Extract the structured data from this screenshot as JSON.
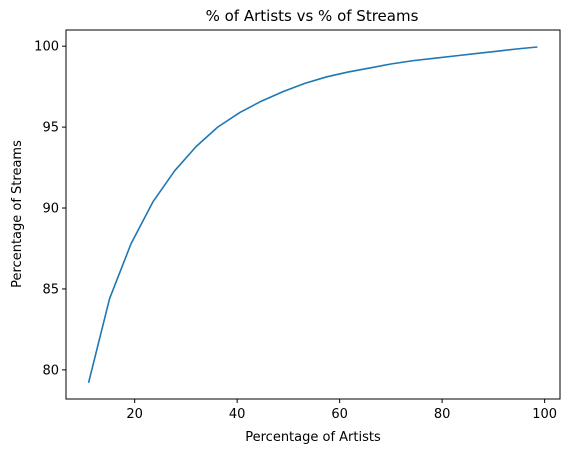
{
  "chart_data": {
    "type": "line",
    "title": "% of Artists vs % of Streams",
    "xlabel": "Percentage of Artists",
    "ylabel": "Percentage of Streams",
    "xlim": [
      6.6,
      103.0
    ],
    "ylim": [
      78.2,
      101.0
    ],
    "xticks": [
      20,
      40,
      60,
      80,
      100
    ],
    "yticks": [
      80,
      85,
      90,
      95,
      100
    ],
    "grid": false,
    "line_color": "#1f77b4",
    "series": [
      {
        "name": "",
        "x": [
          11.0,
          15.1,
          19.3,
          23.6,
          27.8,
          32.0,
          36.2,
          40.5,
          44.7,
          49.0,
          53.2,
          57.4,
          61.6,
          65.8,
          70.0,
          74.2,
          78.4,
          82.6,
          86.8,
          91.0,
          95.2,
          98.6
        ],
        "y": [
          79.2,
          84.4,
          87.8,
          90.4,
          92.3,
          93.8,
          95.0,
          95.9,
          96.6,
          97.2,
          97.7,
          98.1,
          98.4,
          98.65,
          98.9,
          99.1,
          99.25,
          99.4,
          99.55,
          99.7,
          99.85,
          99.95
        ]
      }
    ]
  }
}
